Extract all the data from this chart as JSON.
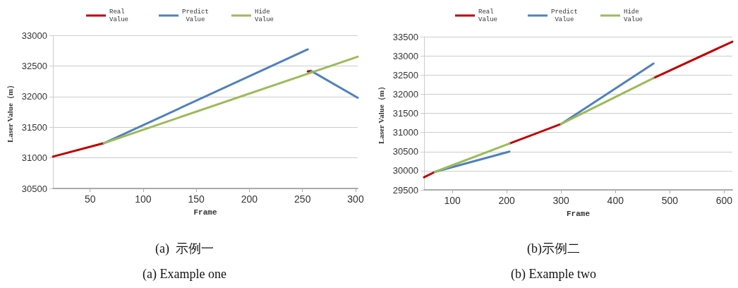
{
  "chart_data": [
    {
      "type": "line",
      "title": "(a)  示例一",
      "subtitle": "(a) Example one",
      "xlabel": "Frame",
      "ylabel": "Laser Value（m）",
      "xlim": [
        15,
        302
      ],
      "xticks": [
        50,
        100,
        150,
        200,
        250,
        300
      ],
      "ylim": [
        30500,
        33000
      ],
      "yticks": [
        30500,
        31000,
        31500,
        32000,
        32500,
        33000
      ],
      "grid": "y",
      "legend": "top",
      "marker": "none",
      "line_style": "solid",
      "series": [
        {
          "name": "Real Value",
          "color": "#c00000",
          "x": [
            15,
            63,
            159,
            255,
            258
          ],
          "values": [
            31020,
            31240,
            null,
            32410,
            32420
          ]
        },
        {
          "name": "Predict Value",
          "color": "#4f81bd",
          "x": [
            63,
            255,
            257,
            258,
            302
          ],
          "values": [
            31240,
            32770,
            null,
            32420,
            31980
          ]
        },
        {
          "name": "Hide Value",
          "color": "#9bbb59",
          "x": [
            63,
            302
          ],
          "values": [
            31240,
            32650
          ]
        }
      ]
    },
    {
      "type": "line",
      "title": "(b)示例二",
      "subtitle": "(b) Example two",
      "xlabel": "Frame",
      "ylabel": "Laser Value（m）",
      "xlim": [
        48,
        615
      ],
      "xticks": [
        100,
        200,
        300,
        400,
        500,
        600
      ],
      "ylim": [
        29500,
        33500
      ],
      "yticks": [
        29500,
        30000,
        30500,
        31000,
        31500,
        32000,
        32500,
        33000,
        33500
      ],
      "grid": "y",
      "legend": "top",
      "marker": "none",
      "line_style": "solid",
      "series": [
        {
          "name": "Real Value",
          "color": "#c00000",
          "x": [
            48,
            68,
            136,
            205,
            300,
            385,
            470,
            615
          ],
          "values": [
            29830,
            29970,
            null,
            30710,
            31220,
            null,
            32420,
            33370
          ]
        },
        {
          "name": "Predict Value",
          "color": "#4f81bd",
          "x": [
            68,
            205,
            250,
            300,
            470
          ],
          "values": [
            29970,
            30500,
            null,
            31220,
            32800
          ]
        },
        {
          "name": "Hide Value",
          "color": "#9bbb59",
          "x": [
            68,
            205,
            250,
            300,
            470
          ],
          "values": [
            29970,
            30710,
            null,
            31220,
            32420
          ]
        }
      ]
    }
  ]
}
